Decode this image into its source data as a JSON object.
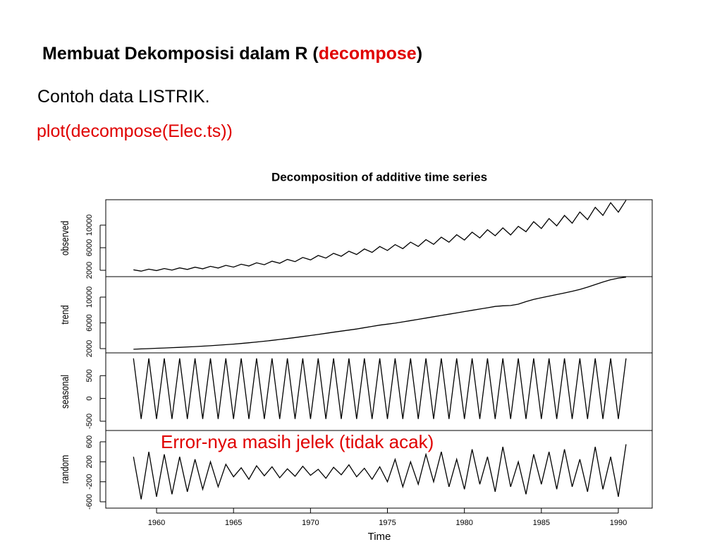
{
  "slide": {
    "title": {
      "text": "Membuat Dekomposisi dalam R (",
      "code": "decompose",
      "close": ")"
    },
    "line1": "Contoh data LISTRIK.",
    "line2": "plot(decompose(Elec.ts))",
    "annotation": "Error-nya masih jelek (tidak acak)"
  },
  "chart_data": {
    "type": "line",
    "title": "Decomposition of additive time series",
    "xlabel": "Time",
    "color": "#000000",
    "xlim": [
      1956.7,
      1992.2
    ],
    "xticks": [
      1960,
      1965,
      1970,
      1975,
      1980,
      1985,
      1990
    ],
    "x": [
      1958.5,
      1959,
      1959.5,
      1960,
      1960.5,
      1961,
      1961.5,
      1962,
      1962.5,
      1963,
      1963.5,
      1964,
      1964.5,
      1965,
      1965.5,
      1966,
      1966.5,
      1967,
      1967.5,
      1968,
      1968.5,
      1969,
      1969.5,
      1970,
      1970.5,
      1971,
      1971.5,
      1972,
      1972.5,
      1973,
      1973.5,
      1974,
      1974.5,
      1975,
      1975.5,
      1976,
      1976.5,
      1977,
      1977.5,
      1978,
      1978.5,
      1979,
      1979.5,
      1980,
      1980.5,
      1981,
      1981.5,
      1982,
      1982.5,
      1983,
      1983.5,
      1984,
      1984.5,
      1985,
      1985.5,
      1986,
      1986.5,
      1987,
      1987.5,
      1988,
      1988.5,
      1989,
      1989.5,
      1990,
      1990.5
    ],
    "series": [
      {
        "name": "observed",
        "ylim": [
          875,
          14500
        ],
        "yticks": [
          2000,
          6000,
          10000
        ],
        "values": [
          2090,
          1850,
          2200,
          1950,
          2310,
          2040,
          2420,
          2150,
          2550,
          2260,
          2695,
          2405,
          2870,
          2565,
          3080,
          2765,
          3330,
          2990,
          3610,
          3250,
          3930,
          3535,
          4270,
          3840,
          4620,
          4160,
          5005,
          4485,
          5370,
          4800,
          5775,
          5180,
          6215,
          5510,
          6550,
          5840,
          6985,
          6220,
          7425,
          6600,
          7865,
          6980,
          8305,
          7360,
          8750,
          7740,
          9185,
          8120,
          9515,
          8265,
          9790,
          8835,
          10615,
          9405,
          11165,
          9880,
          11715,
          10355,
          12320,
          10970,
          13145,
          11730,
          13970,
          12300,
          14410
        ]
      },
      {
        "name": "trend",
        "ylim": [
          1340,
          13180
        ],
        "yticks": [
          2000,
          6000,
          10000
        ],
        "values": [
          1900,
          1950,
          2000,
          2050,
          2100,
          2150,
          2200,
          2260,
          2320,
          2380,
          2450,
          2530,
          2610,
          2700,
          2800,
          2910,
          3030,
          3150,
          3280,
          3420,
          3570,
          3720,
          3880,
          4040,
          4200,
          4380,
          4550,
          4720,
          4880,
          5050,
          5250,
          5450,
          5650,
          5800,
          5950,
          6150,
          6350,
          6550,
          6750,
          6950,
          7150,
          7350,
          7550,
          7750,
          7950,
          8150,
          8350,
          8550,
          8650,
          8700,
          8900,
          9300,
          9650,
          9900,
          10150,
          10400,
          10650,
          10900,
          11200,
          11550,
          11950,
          12350,
          12700,
          12950,
          13100
        ]
      },
      {
        "name": "seasonal",
        "ylim": [
          -703,
          1000
        ],
        "yticks": [
          -500,
          0,
          500
        ],
        "values": [
          880,
          -450,
          880,
          -450,
          880,
          -450,
          880,
          -450,
          880,
          -450,
          880,
          -450,
          880,
          -450,
          880,
          -450,
          880,
          -450,
          880,
          -450,
          880,
          -450,
          880,
          -450,
          880,
          -450,
          880,
          -450,
          880,
          -450,
          880,
          -450,
          880,
          -450,
          880,
          -450,
          880,
          -450,
          880,
          -450,
          880,
          -450,
          880,
          -450,
          880,
          -450,
          880,
          -450,
          880,
          -450,
          880,
          -450,
          880,
          -450,
          880,
          -450,
          880,
          -450,
          880,
          -450,
          880,
          -450,
          880,
          -450,
          880
        ]
      },
      {
        "name": "random",
        "ylim": [
          -727,
          826
        ],
        "yticks": [
          -600,
          -200,
          200,
          600
        ],
        "values": [
          300,
          -550,
          400,
          -500,
          350,
          -450,
          300,
          -400,
          250,
          -350,
          200,
          -300,
          150,
          -100,
          80,
          -150,
          120,
          -80,
          100,
          -120,
          60,
          -90,
          110,
          -70,
          50,
          -130,
          90,
          -60,
          140,
          -100,
          70,
          -150,
          100,
          -200,
          250,
          -300,
          200,
          -250,
          350,
          -200,
          400,
          -300,
          250,
          -350,
          450,
          -250,
          300,
          -400,
          500,
          -300,
          200,
          -450,
          350,
          -250,
          400,
          -350,
          450,
          -300,
          250,
          -400,
          500,
          -350,
          300,
          -500,
          550
        ]
      }
    ]
  }
}
